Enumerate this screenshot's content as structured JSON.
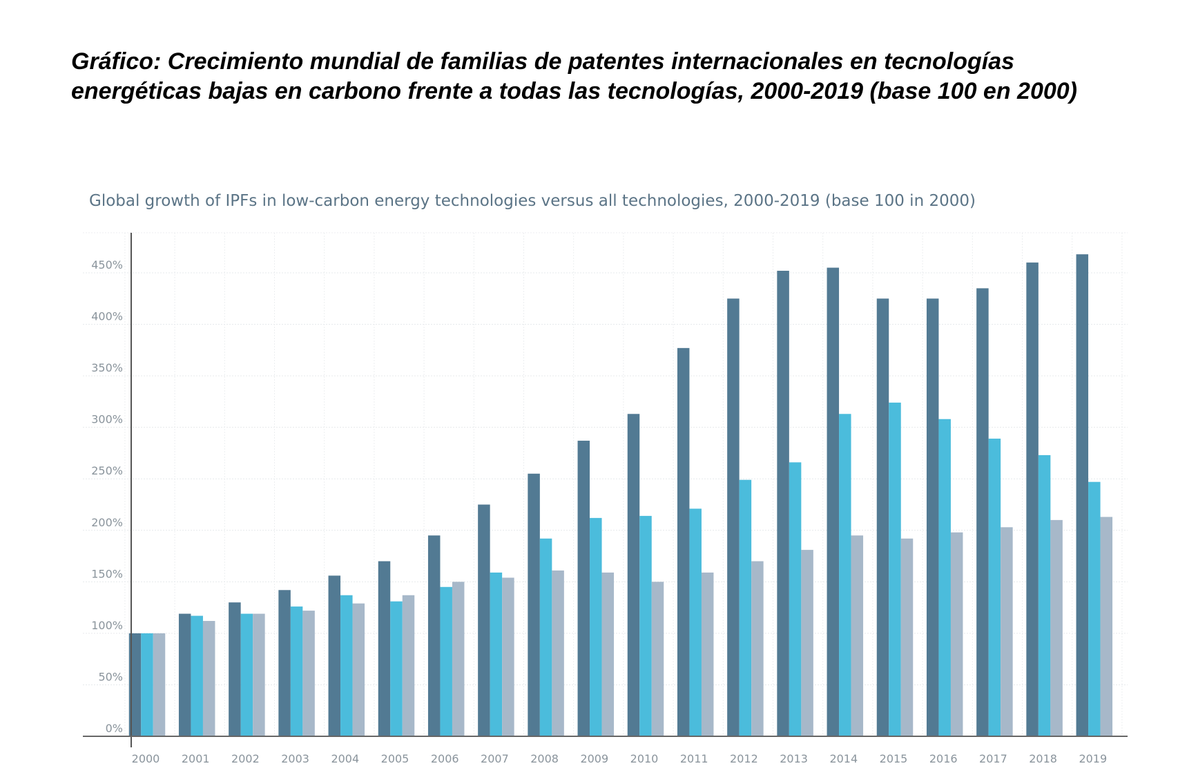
{
  "heading": "Gráfico: Crecimiento mundial de familias de patentes internacionales en tecnologías energéticas bajas en carbono frente a todas las tecnologías, 2000-2019 (base 100 en 2000)",
  "chart_data": {
    "type": "bar",
    "title": "Global growth of IPFs in low-carbon energy technologies versus all technologies, 2000-2019 (base 100 in 2000)",
    "xlabel": "",
    "ylabel": "",
    "ylim": [
      0,
      500
    ],
    "yticks": [
      0,
      50,
      100,
      150,
      200,
      250,
      300,
      350,
      400,
      450
    ],
    "ytick_labels": [
      "0%",
      "50%",
      "100%",
      "150%",
      "200%",
      "250%",
      "300%",
      "350%",
      "400%",
      "450%"
    ],
    "grid": true,
    "legend": "none",
    "categories": [
      "2000",
      "2001",
      "2002",
      "2003",
      "2004",
      "2005",
      "2006",
      "2007",
      "2008",
      "2009",
      "2010",
      "2011",
      "2012",
      "2013",
      "2014",
      "2015",
      "2016",
      "2017",
      "2018",
      "2019"
    ],
    "series": [
      {
        "color": "#527a93",
        "values": [
          100,
          119,
          130,
          142,
          156,
          170,
          195,
          225,
          255,
          287,
          313,
          377,
          425,
          452,
          455,
          425,
          425,
          435,
          460,
          468
        ]
      },
      {
        "color": "#4bbcdc",
        "values": [
          100,
          117,
          119,
          126,
          137,
          131,
          145,
          159,
          192,
          212,
          214,
          221,
          249,
          266,
          313,
          324,
          308,
          289,
          273,
          247
        ]
      },
      {
        "color": "#a7b8c9",
        "values": [
          100,
          112,
          119,
          122,
          129,
          137,
          150,
          154,
          161,
          159,
          150,
          159,
          170,
          181,
          195,
          192,
          198,
          203,
          210,
          213
        ]
      }
    ]
  }
}
